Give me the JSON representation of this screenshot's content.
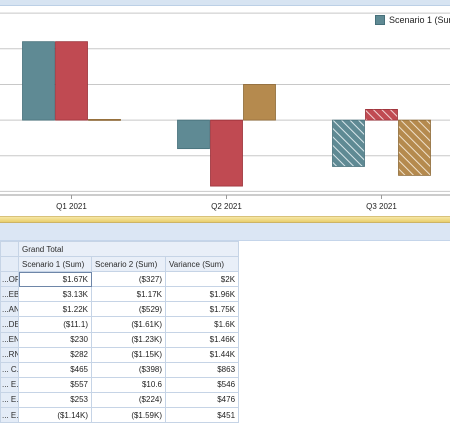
{
  "chart": {
    "legend_label": "Scenario 1 (Sum"
  },
  "chart_data": {
    "type": "bar",
    "categories": [
      "Q1 2021",
      "Q2 2021",
      "Q3 2021"
    ],
    "series": [
      {
        "name": "Scenario 1 (Sum",
        "values": [
          2.2,
          -0.8,
          -1.3
        ],
        "color": "#5f8a94",
        "stroke": "#46707a"
      },
      {
        "values": [
          2.2,
          -1.85,
          0.3
        ],
        "color": "#c04a52",
        "stroke": "#9a3038"
      },
      {
        "values": [
          0.02,
          1.0,
          -1.55
        ],
        "color": "#b58a4e",
        "stroke": "#8e6a38"
      }
    ],
    "hatched_categories": [
      "Q3 2021"
    ],
    "ylim": [
      -2.1,
      3.2
    ],
    "gridlines": [
      3.0,
      2.0,
      1.0,
      0,
      -1.0,
      -2.0
    ],
    "grid": true,
    "legend_position": "top-right"
  },
  "grid": {
    "group_header": "Grand Total",
    "columns": [
      "Scenario 1 (Sum)",
      "Scenario 2 (Sum)",
      "Variance (Sum)"
    ],
    "rows": [
      {
        "label": "...OR...",
        "s1": "$1.67K",
        "s2": "($327)",
        "var": "$2K"
      },
      {
        "label": "...EB...",
        "s1": "$3.13K",
        "s2": "$1.17K",
        "var": "$1.96K"
      },
      {
        "label": "...ANG",
        "s1": "$1.22K",
        "s2": "($529)",
        "var": "$1.75K"
      },
      {
        "label": "...DE...",
        "s1": "($11.1)",
        "s2": "($1.61K)",
        "var": "$1.6K"
      },
      {
        "label": "...EN...",
        "s1": "$230",
        "s2": "($1.23K)",
        "var": "$1.46K"
      },
      {
        "label": "...RN...",
        "s1": "$282",
        "s2": "($1.15K)",
        "var": "$1.44K"
      },
      {
        "label": "... C...",
        "s1": "$465",
        "s2": "($398)",
        "var": "$863"
      },
      {
        "label": "... E...",
        "s1": "$557",
        "s2": "$10.6",
        "var": "$546"
      },
      {
        "label": "... E...",
        "s1": "$253",
        "s2": "($224)",
        "var": "$476"
      },
      {
        "label": "... E...",
        "s1": "($1.14K)",
        "s2": "($1.59K)",
        "var": "$451"
      }
    ]
  }
}
